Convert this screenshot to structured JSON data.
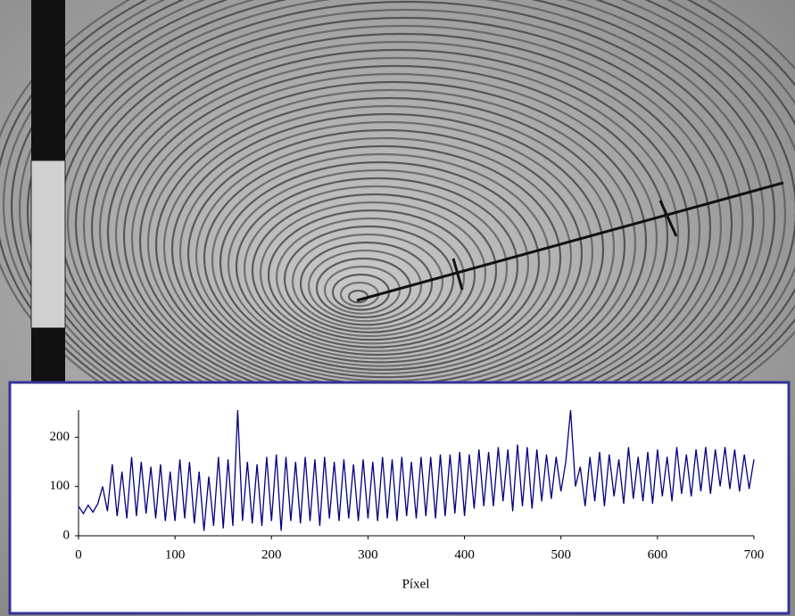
{
  "chart_data": {
    "type": "line",
    "x_label": "Píxel",
    "x": [
      0,
      5,
      10,
      15,
      20,
      25,
      30,
      35,
      40,
      45,
      50,
      55,
      60,
      65,
      70,
      75,
      80,
      85,
      90,
      95,
      100,
      105,
      110,
      115,
      120,
      125,
      130,
      135,
      140,
      145,
      150,
      155,
      160,
      165,
      170,
      175,
      180,
      185,
      190,
      195,
      200,
      205,
      210,
      215,
      220,
      225,
      230,
      235,
      240,
      245,
      250,
      255,
      260,
      265,
      270,
      275,
      280,
      285,
      290,
      295,
      300,
      305,
      310,
      315,
      320,
      325,
      330,
      335,
      340,
      345,
      350,
      355,
      360,
      365,
      370,
      375,
      380,
      385,
      390,
      395,
      400,
      405,
      410,
      415,
      420,
      425,
      430,
      435,
      440,
      445,
      450,
      455,
      460,
      465,
      470,
      475,
      480,
      485,
      490,
      495,
      500,
      505,
      510,
      515,
      520,
      525,
      530,
      535,
      540,
      545,
      550,
      555,
      560,
      565,
      570,
      575,
      580,
      585,
      590,
      595,
      600,
      605,
      610,
      615,
      620,
      625,
      630,
      635,
      640,
      645,
      650,
      655,
      660,
      665,
      670,
      675,
      680,
      685,
      690,
      695,
      700
    ],
    "series": [
      {
        "color": "#000080",
        "values": [
          60,
          45,
          62,
          48,
          65,
          100,
          50,
          145,
          40,
          130,
          35,
          160,
          40,
          150,
          45,
          140,
          35,
          145,
          30,
          130,
          30,
          155,
          35,
          150,
          25,
          130,
          10,
          120,
          20,
          160,
          15,
          155,
          20,
          255,
          30,
          150,
          25,
          145,
          20,
          160,
          30,
          165,
          10,
          160,
          30,
          150,
          25,
          160,
          30,
          155,
          20,
          160,
          35,
          150,
          30,
          155,
          35,
          145,
          30,
          155,
          35,
          150,
          30,
          160,
          35,
          155,
          30,
          160,
          40,
          150,
          35,
          160,
          40,
          160,
          35,
          165,
          40,
          165,
          45,
          170,
          40,
          165,
          55,
          175,
          60,
          170,
          60,
          180,
          70,
          175,
          50,
          185,
          60,
          180,
          55,
          175,
          70,
          165,
          75,
          160,
          90,
          150,
          255,
          100,
          140,
          60,
          160,
          70,
          170,
          60,
          165,
          80,
          155,
          65,
          180,
          75,
          160,
          70,
          170,
          65,
          175,
          80,
          160,
          70,
          180,
          85,
          165,
          80,
          175,
          90,
          180,
          85,
          175,
          100,
          180,
          95,
          175,
          90,
          165,
          95,
          155
        ]
      }
    ],
    "xlim": [
      0,
      700
    ],
    "xticks": [
      0,
      100,
      200,
      300,
      400,
      500,
      600,
      700
    ],
    "ylim": [
      0,
      255
    ],
    "yticks": [
      0,
      100,
      200
    ]
  }
}
